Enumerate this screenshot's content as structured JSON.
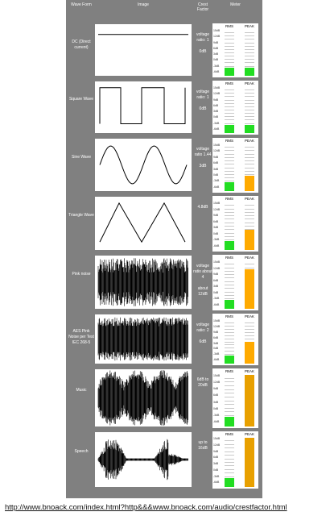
{
  "headers": {
    "wave_form": "Wave Form",
    "image": "Image",
    "crest_factor": "Crest Factor",
    "meter": "Meter"
  },
  "meter_labels": {
    "rms": "RMS",
    "peak": "PEAK",
    "ticks": [
      "15dB",
      "12dB",
      "9dB",
      "6dB",
      "3dB",
      "0dB",
      "-3dB",
      "-6dB"
    ]
  },
  "colors": {
    "panel": "#808080",
    "rms_fill": "#22dd22",
    "peak_fill": "#ffaa00",
    "peak_high_fill": "#e8a000"
  },
  "rows": [
    {
      "name": "DC (Direct current)",
      "crest": "voltage ratio: 1\n\n0dB",
      "wave": "dc",
      "rms_level": 0.18,
      "peak_level": 0.18,
      "peak_color": "rms"
    },
    {
      "name": "Square Wave",
      "crest": "voltage ratio: 1\n\n0dB",
      "wave": "square",
      "rms_level": 0.18,
      "peak_level": 0.18,
      "peak_color": "rms"
    },
    {
      "name": "Sine Wave",
      "crest": "voltage ratio 1.44\n\n3dB",
      "wave": "sine",
      "rms_level": 0.18,
      "peak_level": 0.33,
      "peak_color": "peak"
    },
    {
      "name": "Triangle Wave",
      "crest": "4.8dB",
      "wave": "triangle",
      "rms_level": 0.18,
      "peak_level": 0.41,
      "peak_color": "peak"
    },
    {
      "name": "Pink noise",
      "crest": "voltage ratio about 4\n\nabout 12dB",
      "wave": "pink",
      "rms_level": 0.18,
      "peak_level": 0.82,
      "peak_color": "peak"
    },
    {
      "name": "AES Pink Noise per Test IEC 268-5",
      "crest": "voltage ratio: 2\n\n6dB",
      "wave": "aes",
      "rms_level": 0.18,
      "peak_level": 0.5,
      "peak_color": "peak"
    },
    {
      "name": "Music",
      "crest": "6dB to 20dB",
      "wave": "music",
      "rms_level": 0.18,
      "peak_level": 0.98,
      "peak_color": "peak_high"
    },
    {
      "name": "Speech",
      "crest": "up to 16dB",
      "wave": "speech",
      "rms_level": 0.18,
      "peak_level": 0.98,
      "peak_color": "peak_high"
    }
  ],
  "footer_url": "http://www.bnoack.com/index.html?http&&&www.bnoack.com/audio/crestfactor.html"
}
